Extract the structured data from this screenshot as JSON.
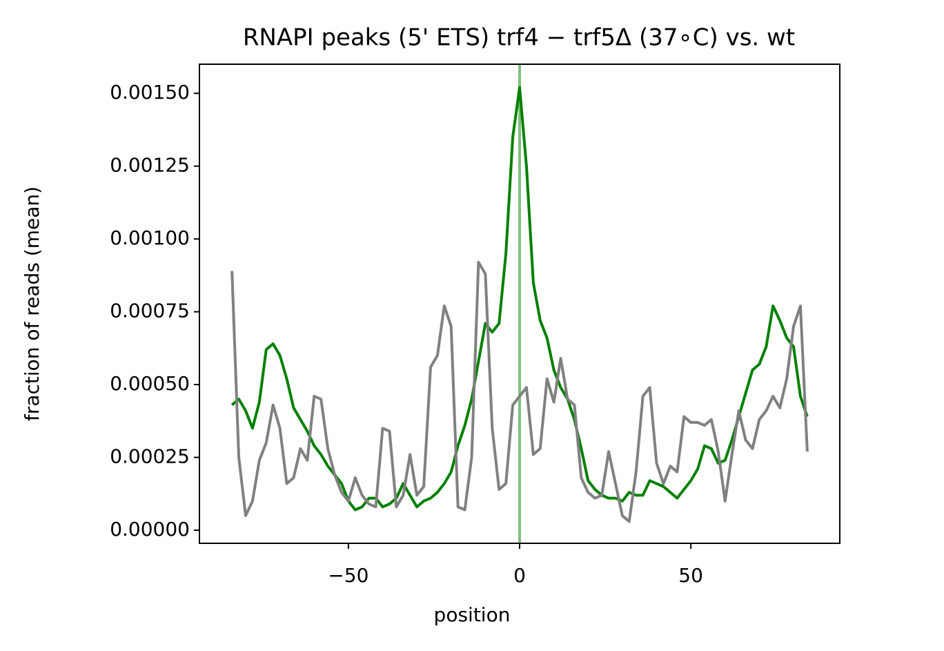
{
  "chart_data": {
    "type": "line",
    "title": "RNAPI peaks (5' ETS) trf4 − trf5Δ (37∘C) vs. wt",
    "xlabel": "position",
    "ylabel": "fraction of reads (mean)",
    "x": [
      -84,
      -82,
      -80,
      -78,
      -76,
      -74,
      -72,
      -70,
      -68,
      -66,
      -64,
      -62,
      -60,
      -58,
      -56,
      -54,
      -52,
      -50,
      -48,
      -46,
      -44,
      -42,
      -40,
      -38,
      -36,
      -34,
      -32,
      -30,
      -28,
      -26,
      -24,
      -22,
      -20,
      -18,
      -16,
      -14,
      -12,
      -10,
      -8,
      -6,
      -4,
      -2,
      0,
      2,
      4,
      6,
      8,
      10,
      12,
      14,
      16,
      18,
      20,
      22,
      24,
      26,
      28,
      30,
      32,
      34,
      36,
      38,
      40,
      42,
      44,
      46,
      48,
      50,
      52,
      54,
      56,
      58,
      60,
      62,
      64,
      66,
      68,
      70,
      72,
      74,
      76,
      78,
      80,
      82,
      84
    ],
    "series": [
      {
        "color": "#008000",
        "values": [
          0.00043,
          0.00045,
          0.00041,
          0.00035,
          0.00044,
          0.00062,
          0.00064,
          0.0006,
          0.00052,
          0.00042,
          0.00038,
          0.00034,
          0.00029,
          0.00026,
          0.00022,
          0.00019,
          0.00016,
          0.0001,
          7e-05,
          8e-05,
          0.00011,
          0.00011,
          8e-05,
          9e-05,
          0.00011,
          0.00016,
          0.00012,
          8e-05,
          0.0001,
          0.00011,
          0.00013,
          0.00016,
          0.0002,
          0.00029,
          0.00036,
          0.00045,
          0.00058,
          0.00071,
          0.00068,
          0.00071,
          0.00095,
          0.00135,
          0.00152,
          0.00125,
          0.00085,
          0.00072,
          0.00066,
          0.00055,
          0.00049,
          0.00045,
          0.00038,
          0.00028,
          0.00017,
          0.00014,
          0.00012,
          0.00011,
          0.00011,
          0.0001,
          0.00013,
          0.00012,
          0.00012,
          0.00017,
          0.00016,
          0.00015,
          0.00013,
          0.00011,
          0.00014,
          0.00017,
          0.00021,
          0.00029,
          0.00028,
          0.00023,
          0.00024,
          0.00031,
          0.00039,
          0.00047,
          0.00055,
          0.00057,
          0.00063,
          0.00077,
          0.00072,
          0.00066,
          0.00063,
          0.00046,
          0.00039
        ]
      },
      {
        "color": "#808080",
        "values": [
          0.00089,
          0.00025,
          5e-05,
          0.0001,
          0.00024,
          0.0003,
          0.00043,
          0.00035,
          0.00016,
          0.00018,
          0.00028,
          0.00024,
          0.00046,
          0.00045,
          0.00028,
          0.00019,
          0.00013,
          0.0001,
          0.00018,
          0.00012,
          9e-05,
          8e-05,
          0.00035,
          0.00034,
          8e-05,
          0.00012,
          0.00026,
          0.00012,
          0.00015,
          0.00056,
          0.0006,
          0.00077,
          0.0007,
          8e-05,
          7e-05,
          0.00025,
          0.00092,
          0.00088,
          0.00035,
          0.00014,
          0.00016,
          0.00043,
          0.00046,
          0.00049,
          0.00026,
          0.00028,
          0.00052,
          0.00044,
          0.00059,
          0.00045,
          0.00043,
          0.00018,
          0.00013,
          0.00011,
          0.00012,
          0.00027,
          0.00016,
          5e-05,
          3e-05,
          0.0002,
          0.00046,
          0.00049,
          0.00023,
          0.00016,
          0.00022,
          0.0002,
          0.00039,
          0.00037,
          0.00037,
          0.00036,
          0.00038,
          0.00027,
          0.0001,
          0.00026,
          0.00041,
          0.00031,
          0.00028,
          0.00038,
          0.00041,
          0.00046,
          0.00042,
          0.00052,
          0.0007,
          0.00077,
          0.00027
        ]
      }
    ],
    "vlines": [
      0
    ],
    "vline_color": "#7fbf7f",
    "xlim": [
      -93.5,
      93.5
    ],
    "xticks": [
      {
        "value": -50,
        "label": "−50"
      },
      0,
      50
    ],
    "ylim": [
      -4.5e-05,
      0.0016
    ],
    "yticks": [
      {
        "value": 0,
        "label": "0.00000"
      },
      {
        "value": 0.00025,
        "label": "0.00025"
      },
      {
        "value": 0.0005,
        "label": "0.00050"
      },
      {
        "value": 0.00075,
        "label": "0.00075"
      },
      {
        "value": 0.001,
        "label": "0.00100"
      },
      {
        "value": 0.00125,
        "label": "0.00125"
      },
      {
        "value": 0.0015,
        "label": "0.00150"
      }
    ]
  }
}
